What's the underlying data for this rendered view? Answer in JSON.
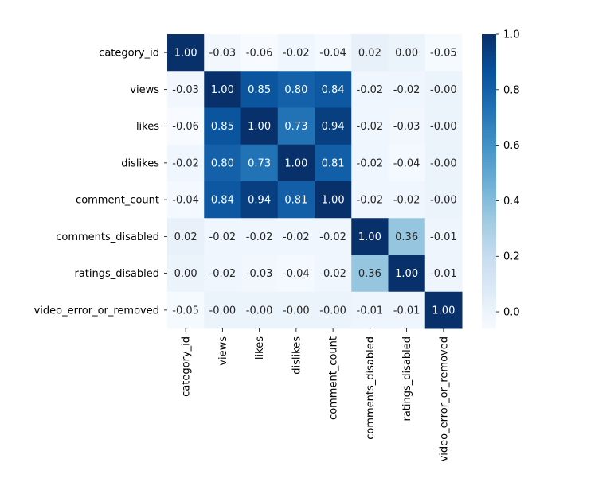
{
  "chart_data": {
    "type": "heatmap",
    "title": "",
    "xlabel": "",
    "ylabel": "",
    "labels": [
      "category_id",
      "views",
      "likes",
      "dislikes",
      "comment_count",
      "comments_disabled",
      "ratings_disabled",
      "video_error_or_removed"
    ],
    "values": [
      [
        1.0,
        -0.03,
        -0.06,
        -0.02,
        -0.04,
        0.02,
        0.0,
        -0.05
      ],
      [
        -0.03,
        1.0,
        0.85,
        0.8,
        0.84,
        -0.02,
        -0.02,
        -0.0
      ],
      [
        -0.06,
        0.85,
        1.0,
        0.73,
        0.94,
        -0.02,
        -0.03,
        -0.0
      ],
      [
        -0.02,
        0.8,
        0.73,
        1.0,
        0.81,
        -0.02,
        -0.04,
        -0.0
      ],
      [
        -0.04,
        0.84,
        0.94,
        0.81,
        1.0,
        -0.02,
        -0.02,
        -0.0
      ],
      [
        0.02,
        -0.02,
        -0.02,
        -0.02,
        -0.02,
        1.0,
        0.36,
        -0.01
      ],
      [
        0.0,
        -0.02,
        -0.03,
        -0.04,
        -0.02,
        0.36,
        1.0,
        -0.01
      ],
      [
        -0.05,
        -0.0,
        -0.0,
        -0.0,
        -0.0,
        -0.01,
        -0.01,
        1.0
      ]
    ],
    "annotation_labels": [
      [
        "1.00",
        "-0.03",
        "-0.06",
        "-0.02",
        "-0.04",
        "0.02",
        "0.00",
        "-0.05"
      ],
      [
        "-0.03",
        "1.00",
        "0.85",
        "0.80",
        "0.84",
        "-0.02",
        "-0.02",
        "-0.00"
      ],
      [
        "-0.06",
        "0.85",
        "1.00",
        "0.73",
        "0.94",
        "-0.02",
        "-0.03",
        "-0.00"
      ],
      [
        "-0.02",
        "0.80",
        "0.73",
        "1.00",
        "0.81",
        "-0.02",
        "-0.04",
        "-0.00"
      ],
      [
        "-0.04",
        "0.84",
        "0.94",
        "0.81",
        "1.00",
        "-0.02",
        "-0.02",
        "-0.00"
      ],
      [
        "0.02",
        "-0.02",
        "-0.02",
        "-0.02",
        "-0.02",
        "1.00",
        "0.36",
        "-0.01"
      ],
      [
        "0.00",
        "-0.02",
        "-0.03",
        "-0.04",
        "-0.02",
        "0.36",
        "1.00",
        "-0.01"
      ],
      [
        "-0.05",
        "-0.00",
        "-0.00",
        "-0.00",
        "-0.00",
        "-0.01",
        "-0.01",
        "1.00"
      ]
    ],
    "colormap": "Blues",
    "colormap_stops": [
      "#f7fbff",
      "#deebf7",
      "#c6dbef",
      "#9ecae1",
      "#6baed6",
      "#4292c6",
      "#2171b5",
      "#08519c",
      "#08306b"
    ],
    "vmin": -0.06,
    "vmax": 1.0,
    "colorbar_ticks": [
      0.0,
      0.2,
      0.4,
      0.6,
      0.8,
      1.0
    ],
    "colorbar_tick_labels": [
      "0.0",
      "0.2",
      "0.4",
      "0.6",
      "0.8",
      "1.0"
    ]
  }
}
